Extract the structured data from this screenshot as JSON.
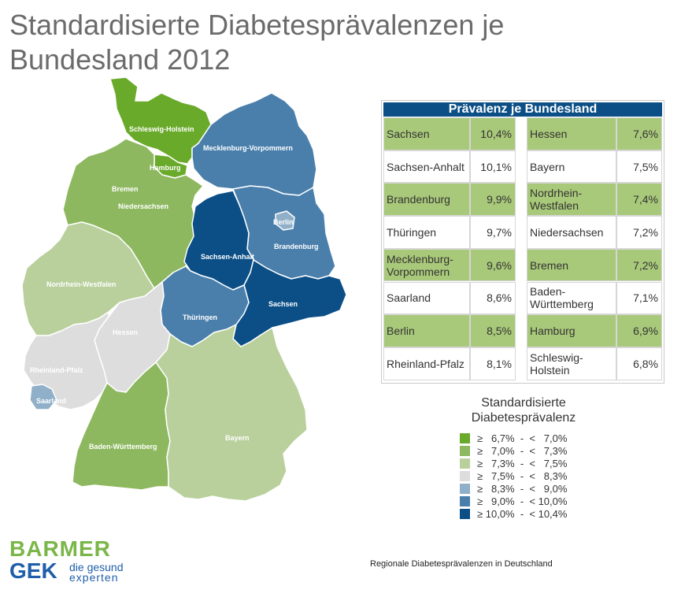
{
  "title": "Standardisierte Diabetesprävalenzen je Bundesland 2012",
  "table": {
    "header": "Prävalenz je Bundesland",
    "left": [
      {
        "name": "Sachsen",
        "value": "10,4%",
        "highlight": true
      },
      {
        "name": "Sachsen-Anhalt",
        "value": "10,1%",
        "highlight": false
      },
      {
        "name": "Brandenburg",
        "value": "9,9%",
        "highlight": true
      },
      {
        "name": "Thüringen",
        "value": "9,7%",
        "highlight": false
      },
      {
        "name": "Mecklenburg-Vorpommern",
        "value": "9,6%",
        "highlight": true
      },
      {
        "name": "Saarland",
        "value": "8,6%",
        "highlight": false
      },
      {
        "name": "Berlin",
        "value": "8,5%",
        "highlight": true
      },
      {
        "name": "Rheinland-Pfalz",
        "value": "8,1%",
        "highlight": false
      }
    ],
    "right": [
      {
        "name": "Hessen",
        "value": "7,6%",
        "highlight": true
      },
      {
        "name": "Bayern",
        "value": "7,5%",
        "highlight": false
      },
      {
        "name": "Nordrhein-Westfalen",
        "value": "7,4%",
        "highlight": true
      },
      {
        "name": "Niedersachsen",
        "value": "7,2%",
        "highlight": false
      },
      {
        "name": "Bremen",
        "value": "7,2%",
        "highlight": true
      },
      {
        "name": "Baden-Württemberg",
        "value": "7,1%",
        "highlight": false
      },
      {
        "name": "Hamburg",
        "value": "6,9%",
        "highlight": true
      },
      {
        "name": "Schleswig-Holstein",
        "value": "6,8%",
        "highlight": false
      }
    ]
  },
  "legend": {
    "title": "Standardisierte Diabetesprävalenz",
    "items": [
      {
        "label": "≥   6,7%  -  <   7,0%",
        "color": "#6aaa2a"
      },
      {
        "label": "≥   7,0%  -  <   7,3%",
        "color": "#8db85f"
      },
      {
        "label": "≥   7,3%  -  <   7,5%",
        "color": "#b9d09c"
      },
      {
        "label": "≥   7,5%  -  <   8,3%",
        "color": "#dddddd"
      },
      {
        "label": "≥   8,3%  -  <   9,0%",
        "color": "#8fb0c8"
      },
      {
        "label": "≥   9,0%  -  < 10,0%",
        "color": "#4a7fac"
      },
      {
        "label": "≥ 10,0%  -  < 10,4%",
        "color": "#0b4f86"
      }
    ]
  },
  "map": {
    "regions": [
      {
        "name": "Schleswig-Holstein",
        "color": "#6aaa2a"
      },
      {
        "name": "Hamburg",
        "color": "#6aaa2a"
      },
      {
        "name": "Mecklenburg-Vorpommern",
        "color": "#4a7fac"
      },
      {
        "name": "Bremen",
        "color": "#8db85f"
      },
      {
        "name": "Niedersachsen",
        "color": "#8db85f"
      },
      {
        "name": "Berlin",
        "color": "#8fb0c8"
      },
      {
        "name": "Brandenburg",
        "color": "#4a7fac"
      },
      {
        "name": "Sachsen-Anhalt",
        "color": "#0b4f86"
      },
      {
        "name": "Nordrhein-Westfalen",
        "color": "#b9d09c"
      },
      {
        "name": "Sachsen",
        "color": "#0b4f86"
      },
      {
        "name": "Thüringen",
        "color": "#4a7fac"
      },
      {
        "name": "Hessen",
        "color": "#dddddd"
      },
      {
        "name": "Rheinland-Pfalz",
        "color": "#dddddd"
      },
      {
        "name": "Saarland",
        "color": "#8fb0c8"
      },
      {
        "name": "Baden-Württemberg",
        "color": "#8db85f"
      },
      {
        "name": "Bayern",
        "color": "#b9d09c"
      }
    ]
  },
  "logo": {
    "line1": "BARMER",
    "line2": "GEK",
    "line3a": "die gesund",
    "line3b": "experten"
  },
  "caption": "Regionale Diabetesprävalenzen in Deutschland"
}
